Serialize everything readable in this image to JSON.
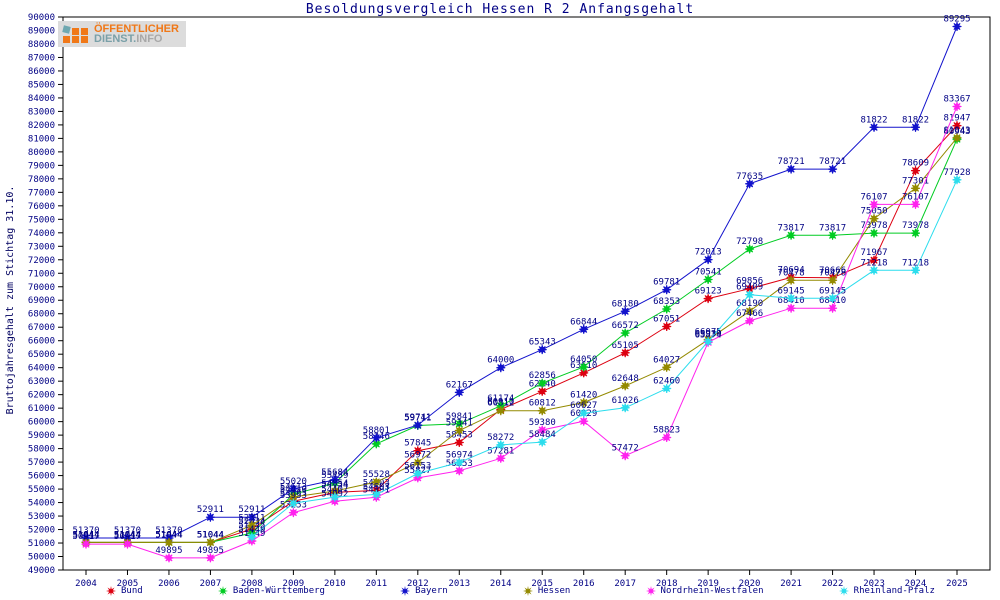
{
  "title": "Besoldungsvergleich Hessen R 2 Anfangsgehalt",
  "y_axis_label": "Bruttojahresgehalt zum Stichtag 31.10.",
  "logo": {
    "line1": "ÖFFENTLICHER",
    "line2_strong": "DIENST.",
    "line2_rest": "INFO"
  },
  "colors": {
    "axis_text": "#000084",
    "plot_border": "#000000"
  },
  "chart_data": {
    "type": "line",
    "title": "Besoldungsvergleich Hessen R 2 Anfangsgehalt",
    "ylabel": "Bruttojahresgehalt zum Stichtag 31.10.",
    "xlabel": "",
    "x": [
      2004,
      2005,
      2006,
      2007,
      2008,
      2009,
      2010,
      2011,
      2012,
      2013,
      2014,
      2015,
      2016,
      2017,
      2018,
      2019,
      2020,
      2021,
      2022,
      2023,
      2024,
      2025
    ],
    "ylim": [
      49000,
      90000
    ],
    "ytick_step": 1000,
    "grid": false,
    "legend_position": "bottom",
    "point_labels": true,
    "series": [
      {
        "name": "Bund",
        "color": "#dd0010",
        "values": [
          51044,
          51044,
          51044,
          51044,
          52034,
          54103,
          54754,
          54903,
          57845,
          58453,
          60910,
          62240,
          63610,
          65105,
          67051,
          69123,
          69856,
          70694,
          70666,
          71967,
          78609,
          81947
        ]
      },
      {
        "name": "Baden-Württemberg",
        "color": "#00cc22",
        "values": [
          51044,
          51044,
          51044,
          51044,
          51745,
          54613,
          55459,
          58346,
          59711,
          59841,
          61174,
          62856,
          64050,
          66572,
          68353,
          70541,
          72798,
          73817,
          73817,
          73978,
          73978,
          80943
        ]
      },
      {
        "name": "Bayern",
        "color": "#1212cc",
        "values": [
          51370,
          51370,
          51370,
          52911,
          52911,
          55020,
          55684,
          58801,
          59741,
          62167,
          64000,
          65343,
          66844,
          68180,
          69781,
          72013,
          77635,
          78721,
          78721,
          81822,
          81822,
          89295
        ]
      },
      {
        "name": "Hessen",
        "color": "#948a00",
        "values": [
          51044,
          51044,
          51044,
          51044,
          52311,
          54410,
          54854,
          55528,
          56972,
          59341,
          60812,
          60812,
          61420,
          62648,
          64027,
          66075,
          68190,
          70478,
          70478,
          75050,
          77301,
          81043
        ]
      },
      {
        "name": "Nordrhein-Westfalen",
        "color": "#ff22ee",
        "values": [
          50917,
          50917,
          49895,
          49895,
          51149,
          53253,
          54092,
          54391,
          55827,
          56353,
          57281,
          59380,
          60029,
          57472,
          58823,
          65874,
          67466,
          68410,
          68410,
          76107,
          76107,
          83367
        ]
      },
      {
        "name": "Rheinland-Pfalz",
        "color": "#2cdded",
        "values": [
          null,
          null,
          null,
          null,
          51449,
          53953,
          54407,
          54603,
          56153,
          56974,
          58272,
          58484,
          60627,
          61026,
          62460,
          65939,
          69409,
          69145,
          69145,
          71218,
          71218,
          77928
        ]
      }
    ]
  }
}
